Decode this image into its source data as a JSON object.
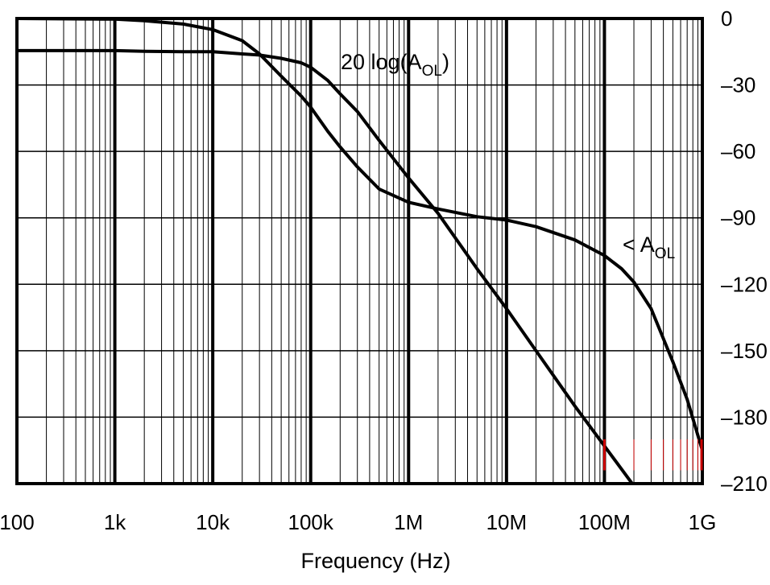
{
  "chart_data": {
    "type": "line",
    "xlabel": "Frequency (Hz)",
    "ylabel": "",
    "x_scale": "log",
    "xlim": [
      100,
      1000000000
    ],
    "ylim": [
      -210,
      0
    ],
    "grid": true,
    "x_tick_values": [
      100,
      1000,
      10000,
      100000,
      1000000,
      10000000,
      100000000,
      1000000000
    ],
    "x_tick_labels": [
      "100",
      "1k",
      "10k",
      "100k",
      "1M",
      "10M",
      "100M",
      "1G"
    ],
    "y_tick_values": [
      0,
      -30,
      -60,
      -90,
      -120,
      -150,
      -180,
      -210
    ],
    "y_tick_labels": [
      "0",
      "–30",
      "–60",
      "–90",
      "–120",
      "–150",
      "–180",
      "–210"
    ],
    "series": [
      {
        "name": "20 log(AOL)",
        "label_main": "20 log(A",
        "label_sub": "OL",
        "label_close": ")",
        "x": [
          100,
          1000,
          2000,
          5000,
          10000,
          20000,
          30000,
          50000,
          80000,
          100000,
          150000,
          200000,
          300000,
          500000,
          1000000,
          2000000,
          5000000,
          10000000,
          20000000,
          50000000,
          100000000,
          200000000
        ],
        "values": [
          -14.5,
          -14.5,
          -14.8,
          -15,
          -15,
          -16,
          -16.5,
          -18,
          -20,
          -22,
          -28,
          -34,
          -42,
          -55,
          -72,
          -88,
          -113,
          -131,
          -150,
          -175,
          -193,
          -211
        ]
      },
      {
        "name": "< AOL",
        "label_main": "< A",
        "label_sub": "OL",
        "x": [
          100,
          1000,
          2000,
          5000,
          10000,
          20000,
          30000,
          50000,
          80000,
          100000,
          150000,
          200000,
          300000,
          500000,
          1000000,
          2000000,
          5000000,
          10000000,
          20000000,
          50000000,
          100000000,
          150000000,
          200000000,
          300000000,
          500000000,
          700000000,
          1000000000
        ],
        "values": [
          0,
          -0.3,
          -1,
          -2.5,
          -5,
          -10,
          -16,
          -26,
          -35,
          -40,
          -51,
          -58,
          -67,
          -77,
          -83,
          -86,
          -89.5,
          -91,
          -94,
          -100,
          -107,
          -113,
          -119,
          -131,
          -155,
          -172,
          -195
        ]
      }
    ],
    "marker_color": "#cc0000"
  }
}
